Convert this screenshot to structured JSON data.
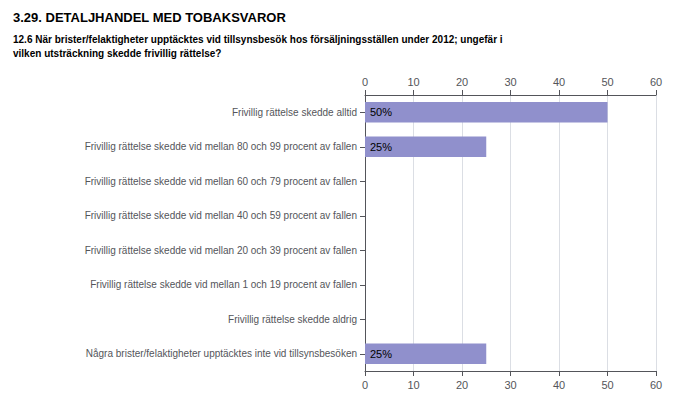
{
  "chart_data": {
    "type": "bar",
    "orientation": "horizontal",
    "title": "3.29. DETALJHANDEL MED TOBAKSVAROR",
    "subtitle": "12.6 När brister/felaktigheter upptäcktes vid tillsynsbesök hos försäljningsställen under 2012; ungefär i\nvilken utsträckning skedde frivillig rättelse?",
    "categories": [
      "Frivillig rättelse skedde alltid",
      "Frivillig rättelse skedde vid mellan 80 och 99 procent av fallen",
      "Frivillig rättelse skedde vid mellan 60 och 79 procent av fallen",
      "Frivillig rättelse skedde vid mellan 40 och 59 procent av fallen",
      "Frivillig rättelse skedde vid mellan 20 och 39 procent av fallen",
      "Frivillig rättelse skedde vid mellan 1 och 19 procent av fallen",
      "Frivillig rättelse skedde aldrig",
      "Några brister/felaktigheter upptäcktes inte vid tillsynsbesöken"
    ],
    "values": [
      50,
      25,
      0,
      0,
      0,
      0,
      0,
      25
    ],
    "value_labels": [
      "50%",
      "25%",
      null,
      null,
      null,
      null,
      null,
      "25%"
    ],
    "data_labels": true,
    "color": "#9090cc",
    "xlim": [
      0,
      60
    ],
    "xticks": [
      0,
      10,
      20,
      30,
      40,
      50,
      60
    ],
    "grid": true
  }
}
